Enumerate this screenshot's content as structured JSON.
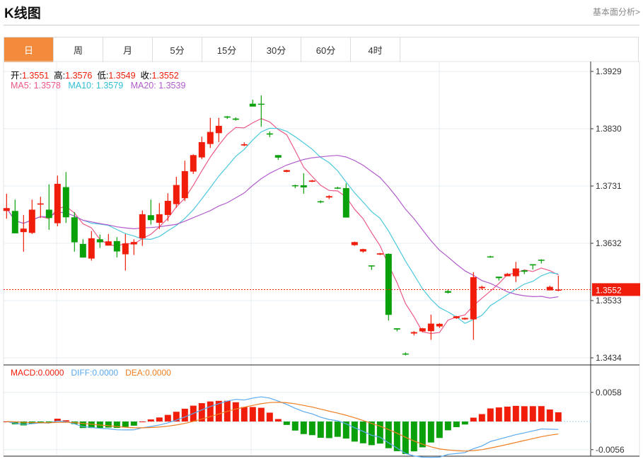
{
  "header": {
    "title": "K线图",
    "link": "基本面分析>"
  },
  "tabs": [
    {
      "label": "日",
      "active": true
    },
    {
      "label": "周"
    },
    {
      "label": "月"
    },
    {
      "label": "5分"
    },
    {
      "label": "15分"
    },
    {
      "label": "30分"
    },
    {
      "label": "60分"
    },
    {
      "label": "4时"
    }
  ],
  "ohlc_info": {
    "open_label": "开:",
    "open": "1.3551",
    "high_label": "高:",
    "high": "1.3576",
    "low_label": "低:",
    "low": "1.3549",
    "close_label": "收:",
    "close": "1.3552"
  },
  "ma_info": {
    "ma5": "MA5: 1.3578",
    "ma10": "MA10: 1.3579",
    "ma20": "MA20: 1.3539"
  },
  "macd_info": {
    "macd": "MACD:0.0000",
    "diff": "DIFF:0.0000",
    "dea": "DEA:0.0000"
  },
  "colors": {
    "up": "#f01d0a",
    "down": "#0aa00a",
    "ma5": "#ec5a86",
    "ma10": "#4cc9dc",
    "ma20": "#b25ccc",
    "diff": "#5aa9ee",
    "dea": "#f07f22",
    "accent": "#f28c3c"
  },
  "chart_data": {
    "type": "candlestick",
    "price_axis": {
      "ticks": [
        "1.3929",
        "1.3830",
        "1.3731",
        "1.3632",
        "1.3533",
        "1.3434"
      ],
      "range": [
        1.3434,
        1.3929
      ]
    },
    "current_price": "1.3552",
    "macd_axis": {
      "ticks": [
        "0.0058",
        "-0.0056"
      ],
      "range": [
        -0.0056,
        0.0058
      ]
    },
    "candles": [
      [
        1.36879,
        1.37177,
        1.36745,
        1.36928
      ],
      [
        1.36879,
        1.37075,
        1.36492,
        1.36492
      ],
      [
        1.36513,
        1.3681,
        1.36175,
        1.36574
      ],
      [
        1.365,
        1.37075,
        1.3648,
        1.36901
      ],
      [
        1.36989,
        1.37124,
        1.36757,
        1.37009
      ],
      [
        1.36901,
        1.37339,
        1.36553,
        1.36757
      ],
      [
        1.36667,
        1.3749,
        1.36614,
        1.37348
      ],
      [
        1.37291,
        1.37551,
        1.36671,
        1.36769
      ],
      [
        1.36769,
        1.36859,
        1.36175,
        1.36337
      ],
      [
        1.36309,
        1.3639,
        1.36073,
        1.36073
      ],
      [
        1.36056,
        1.36533,
        1.3602,
        1.36407
      ],
      [
        1.3639,
        1.36472,
        1.3624,
        1.36337
      ],
      [
        1.3628,
        1.3648,
        1.3628,
        1.36354
      ],
      [
        1.36358,
        1.36427,
        1.36077,
        1.36179
      ],
      [
        1.3613,
        1.3648,
        1.35849,
        1.36317
      ],
      [
        1.36301,
        1.3639,
        1.36118,
        1.36342
      ],
      [
        1.36407,
        1.36887,
        1.36276,
        1.36822
      ],
      [
        1.36806,
        1.37075,
        1.36643,
        1.3672
      ],
      [
        1.36675,
        1.37014,
        1.36566,
        1.36822
      ],
      [
        1.3681,
        1.37185,
        1.36704,
        1.37054
      ],
      [
        1.36997,
        1.3747,
        1.36936,
        1.37327
      ],
      [
        1.37099,
        1.37747,
        1.3705,
        1.37567
      ],
      [
        1.37559,
        1.37857,
        1.37519,
        1.37844
      ],
      [
        1.37804,
        1.38162,
        1.37775,
        1.38068
      ],
      [
        1.38036,
        1.38488,
        1.37967,
        1.38244
      ],
      [
        1.38223,
        1.38488,
        1.38068,
        1.3835
      ],
      [
        1.38512,
        1.38521,
        1.38468,
        1.38492
      ],
      [
        1.38476,
        1.38496,
        1.38439,
        1.38455
      ],
      [
        1.38011,
        1.38064,
        1.37999,
        1.38032
      ],
      [
        1.38732,
        1.38802,
        1.38683,
        1.38683
      ],
      [
        1.38732,
        1.38875,
        1.38333,
        1.38716
      ],
      [
        1.38219,
        1.38252,
        1.38154,
        1.38199
      ],
      [
        1.37844,
        1.37844,
        1.37763,
        1.378
      ],
      [
        1.37555,
        1.37592,
        1.37547,
        1.37584
      ],
      [
        1.37323,
        1.37335,
        1.37274,
        1.37307
      ],
      [
        1.37323,
        1.37531,
        1.37177,
        1.37286
      ],
      [
        1.37384,
        1.37417,
        1.37376,
        1.37405
      ],
      [
        1.37046,
        1.37062,
        1.37013,
        1.3703
      ],
      [
        1.37111,
        1.37152,
        1.37083,
        1.37135
      ],
      [
        1.37282,
        1.37298,
        1.37258,
        1.37266
      ],
      [
        1.37274,
        1.37355,
        1.36765,
        1.36765
      ],
      [
        1.36288,
        1.36349,
        1.36276,
        1.36341
      ],
      [
        1.36178,
        1.36227,
        1.36158,
        1.36219
      ],
      [
        1.35938,
        1.35938,
        1.35861,
        1.35922
      ],
      [
        1.36125,
        1.36154,
        1.36117,
        1.36146
      ],
      [
        1.36138,
        1.36146,
        1.34985,
        1.35083
      ],
      [
        1.34851,
        1.34851,
        1.34798,
        1.3483
      ],
      [
        1.34415,
        1.34435,
        1.34382,
        1.34402
      ],
      [
        1.34761,
        1.34802,
        1.34728,
        1.34785
      ],
      [
        1.34798,
        1.34859,
        1.34785,
        1.34851
      ],
      [
        1.34802,
        1.35087,
        1.34651,
        1.34932
      ],
      [
        1.34883,
        1.3494,
        1.34855,
        1.34928
      ],
      [
        1.35494,
        1.35523,
        1.35453,
        1.35466
      ],
      [
        1.35026,
        1.35066,
        1.35013,
        1.35058
      ],
      [
        1.35005,
        1.35038,
        1.34997,
        1.3503
      ],
      [
        1.35005,
        1.3582,
        1.34651,
        1.35734
      ],
      [
        1.35543,
        1.35588,
        1.35518,
        1.35567
      ],
      [
        1.36093,
        1.36105,
        1.36072,
        1.36081
      ],
      [
        1.35743,
        1.35743,
        1.35677,
        1.35718
      ],
      [
        1.35751,
        1.35808,
        1.35751,
        1.35791
      ],
      [
        1.35751,
        1.35999,
        1.35649,
        1.35885
      ],
      [
        1.35852,
        1.35861,
        1.35787,
        1.35828
      ],
      [
        1.35958,
        1.35958,
        1.35869,
        1.35938
      ],
      [
        1.36036,
        1.36044,
        1.35971,
        1.36019
      ],
      [
        1.35506,
        1.35588,
        1.35506,
        1.35567
      ],
      [
        1.3551,
        1.3576,
        1.3549,
        1.3552
      ]
    ]
  }
}
